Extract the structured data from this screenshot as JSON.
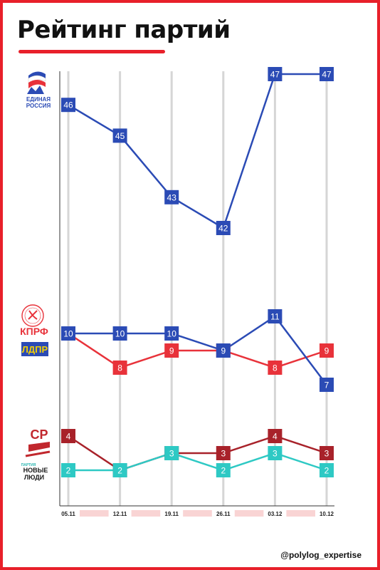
{
  "title": "Рейтинг партий",
  "footer": "@polylog_expertise",
  "legend_logos": {
    "er_line1": "ЕДИНАЯ",
    "er_line2": "РОССИЯ",
    "kprf": "КПРФ",
    "ldpr": "ЛДПР",
    "sr": "СР",
    "nl_small": "ПАРТИЯ",
    "nl_line1": "НОВЫЕ",
    "nl_line2": "ЛЮДИ"
  },
  "chart_data": {
    "type": "line",
    "x": [
      "05.11",
      "12.11",
      "19.11",
      "26.11",
      "03.12",
      "10.12"
    ],
    "series": [
      {
        "name": "ЕДИНАЯ РОССИЯ",
        "color": "#2b4bb5",
        "values": [
          46,
          45,
          43,
          42,
          47,
          47
        ]
      },
      {
        "name": "КПРФ",
        "color": "#e8323a",
        "values": [
          10,
          8,
          9,
          9,
          8,
          9
        ]
      },
      {
        "name": "ЛДПР",
        "color": "#2b4bb5",
        "values": [
          10,
          10,
          10,
          9,
          11,
          7
        ]
      },
      {
        "name": "СР",
        "color": "#a8222a",
        "values": [
          4,
          2,
          3,
          3,
          4,
          3
        ]
      },
      {
        "name": "НОВЫЕ ЛЮДИ",
        "color": "#2ec9c4",
        "values": [
          2,
          2,
          3,
          2,
          3,
          2
        ]
      }
    ],
    "grid": "vertical"
  }
}
